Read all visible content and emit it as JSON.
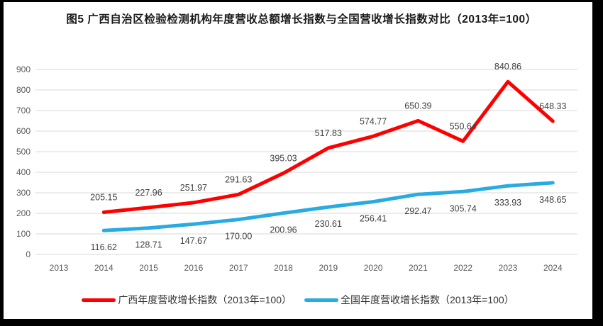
{
  "title": "图5  广西自治区检验检测机构年度营收总额增长指数与全国营收增长指数对比（2013年=100）",
  "colors": {
    "guangxi_red": "#fe0000",
    "national_blue": "#29abe2",
    "gridline": "#d9d9d9"
  },
  "chart_data": {
    "type": "line",
    "x": [
      "2013",
      "2014",
      "2015",
      "2016",
      "2017",
      "2018",
      "2019",
      "2020",
      "2021",
      "2022",
      "2023",
      "2024"
    ],
    "yticks": [
      0,
      100,
      200,
      300,
      400,
      500,
      600,
      700,
      800,
      900
    ],
    "ylim": [
      0,
      900
    ],
    "grid": "horizontal",
    "legend_position": "bottom",
    "series": [
      {
        "name": "广西年度营收增长指数（2013年=100）",
        "color": "#fe0000",
        "label_position": "above",
        "values": [
          null,
          205.15,
          227.96,
          251.97,
          291.63,
          395.03,
          517.83,
          574.77,
          650.39,
          550.64,
          840.86,
          648.33
        ],
        "labels": [
          "",
          "205.15",
          "227.96",
          "251.97",
          "291.63",
          "395.03",
          "517.83",
          "574.77",
          "650.39",
          "550.64",
          "840.86",
          "648.33"
        ]
      },
      {
        "name": "全国年度营收增长指数（2013年=100）",
        "color": "#29abe2",
        "label_position": "below",
        "values": [
          null,
          116.62,
          128.71,
          147.67,
          170.0,
          200.96,
          230.61,
          256.41,
          292.47,
          305.74,
          333.93,
          348.65
        ],
        "labels": [
          "",
          "116.62",
          "128.71",
          "147.67",
          "170.00",
          "200.96",
          "230.61",
          "256.41",
          "292.47",
          "305.74",
          "333.93",
          "348.65"
        ]
      }
    ]
  },
  "legend": {
    "items": [
      {
        "label": "广西年度营收增长指数（2013年=100）",
        "color": "#fe0000"
      },
      {
        "label": "全国年度营收增长指数（2013年=100）",
        "color": "#29abe2"
      }
    ]
  }
}
